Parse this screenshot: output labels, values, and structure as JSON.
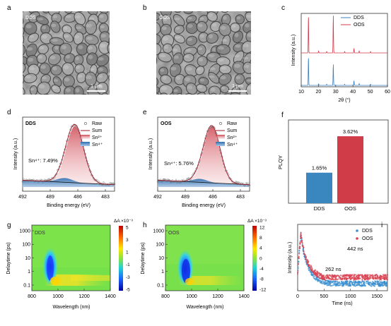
{
  "panels": {
    "a": {
      "letter": "a",
      "sample": "DDS",
      "scale": "1 μm"
    },
    "b": {
      "letter": "b",
      "sample": "OOS",
      "scale": "1 μm"
    },
    "c": {
      "letter": "c",
      "ylabel": "Intensity (a.u.)",
      "xlabel": "2θ (°)",
      "xticks": [
        "10",
        "20",
        "30",
        "40",
        "50",
        "60"
      ],
      "legend": [
        {
          "name": "DDS",
          "color": "#3b7fc0"
        },
        {
          "name": "OOS",
          "color": "#d23d4a"
        }
      ]
    },
    "d": {
      "letter": "d",
      "sample": "DDS",
      "ylabel": "Intensity (a.u.)",
      "xlabel": "Binding energy (eV)",
      "xticks": [
        "492",
        "489",
        "486",
        "483"
      ],
      "annotation": "Sn⁴⁺: 7.49%",
      "legend": [
        "Raw",
        "Sum",
        "Sn²⁺",
        "Sn⁴⁺"
      ]
    },
    "e": {
      "letter": "e",
      "sample": "OOS",
      "ylabel": "Intensity (a.u.)",
      "xlabel": "Binding energy (eV)",
      "xticks": [
        "492",
        "489",
        "486",
        "483"
      ],
      "annotation": "Sn⁴⁺: 5.76%",
      "legend": [
        "Raw",
        "Sum",
        "Sn²⁺",
        "Sn⁴⁺"
      ]
    },
    "f": {
      "letter": "f",
      "ylabel": "PLQY"
    },
    "g": {
      "letter": "g",
      "sample": "DDS",
      "ylabel": "Delaytime (ps)",
      "xlabel": "Wavelength (nm)",
      "yticks": [
        "1000",
        "100",
        "10",
        "1",
        "0.1"
      ],
      "xticks": [
        "800",
        "1000",
        "1200",
        "1400"
      ],
      "cbar_title": "ΔA ×10⁻³",
      "cbar_ticks": [
        "5",
        "3",
        "1",
        "-1",
        "-3",
        "-5"
      ]
    },
    "h": {
      "letter": "h",
      "sample": "OOS",
      "ylabel": "Delaytime (ps)",
      "xlabel": "Wavelength (nm)",
      "yticks": [
        "1000",
        "100",
        "10",
        "1",
        "0.1"
      ],
      "xticks": [
        "800",
        "1000",
        "1200",
        "1400"
      ],
      "cbar_title": "ΔA ×10⁻³",
      "cbar_ticks": [
        "12",
        "8",
        "4",
        "0",
        "-4",
        "-8",
        "-12"
      ]
    },
    "i": {
      "letter": "i",
      "ylabel": "Intensity (a.u.)",
      "xlabel": "Time (ns)",
      "xticks": [
        "0",
        "500",
        "1000",
        "1500"
      ],
      "legend": [
        {
          "name": "DDS",
          "color": "#3b8fd0"
        },
        {
          "name": "OOS",
          "color": "#d94050"
        }
      ],
      "annotations": [
        "442 ns",
        "262 ns"
      ]
    }
  },
  "chart_data": [
    {
      "panel": "c",
      "type": "line",
      "xlabel": "2θ (°)",
      "ylabel": "Intensity (a.u.)",
      "xlim": [
        10,
        60
      ],
      "series": [
        {
          "name": "DDS",
          "peaks": [
            {
              "x": 14.2,
              "h": 1.0
            },
            {
              "x": 28.6,
              "h": 0.72
            },
            {
              "x": 20.1,
              "h": 0.05
            },
            {
              "x": 24.8,
              "h": 0.04
            },
            {
              "x": 35.2,
              "h": 0.04
            },
            {
              "x": 40.6,
              "h": 0.16
            },
            {
              "x": 43.6,
              "h": 0.06
            },
            {
              "x": 50.2,
              "h": 0.04
            }
          ]
        },
        {
          "name": "OOS",
          "peaks": [
            {
              "x": 14.2,
              "h": 1.0
            },
            {
              "x": 28.6,
              "h": 0.98
            },
            {
              "x": 20.1,
              "h": 0.05
            },
            {
              "x": 24.8,
              "h": 0.04
            },
            {
              "x": 35.2,
              "h": 0.04
            },
            {
              "x": 40.6,
              "h": 0.12
            },
            {
              "x": 43.6,
              "h": 0.05
            },
            {
              "x": 50.2,
              "h": 0.04
            }
          ]
        }
      ]
    },
    {
      "panel": "f",
      "type": "bar",
      "ylabel": "PLQY",
      "categories": [
        "DDS",
        "OOS"
      ],
      "values": [
        1.65,
        3.62
      ],
      "labels": [
        "1.65%",
        "3.62%"
      ],
      "colors": [
        "#3a87c0",
        "#d03c48"
      ],
      "ylim": [
        0,
        4.5
      ]
    },
    {
      "panel": "d",
      "type": "line",
      "xlabel": "Binding energy (eV)",
      "xlim": [
        492,
        482
      ],
      "sn2": {
        "center": 486.3,
        "width": 0.95,
        "height": 1.0
      },
      "sn4": {
        "center": 487.4,
        "width": 0.85,
        "height": 0.075
      },
      "sn4_fraction": 7.49
    },
    {
      "panel": "e",
      "type": "line",
      "xlabel": "Binding energy (eV)",
      "xlim": [
        492,
        482
      ],
      "sn2": {
        "center": 486.1,
        "width": 0.9,
        "height": 1.0
      },
      "sn4": {
        "center": 487.4,
        "width": 0.8,
        "height": 0.06
      },
      "sn4_fraction": 5.76
    },
    {
      "panel": "i",
      "type": "scatter",
      "xlabel": "Time (ns)",
      "xlim": [
        0,
        1700
      ],
      "series": [
        {
          "name": "DDS",
          "lifetime_ns": 262
        },
        {
          "name": "OOS",
          "lifetime_ns": 442
        }
      ]
    }
  ]
}
